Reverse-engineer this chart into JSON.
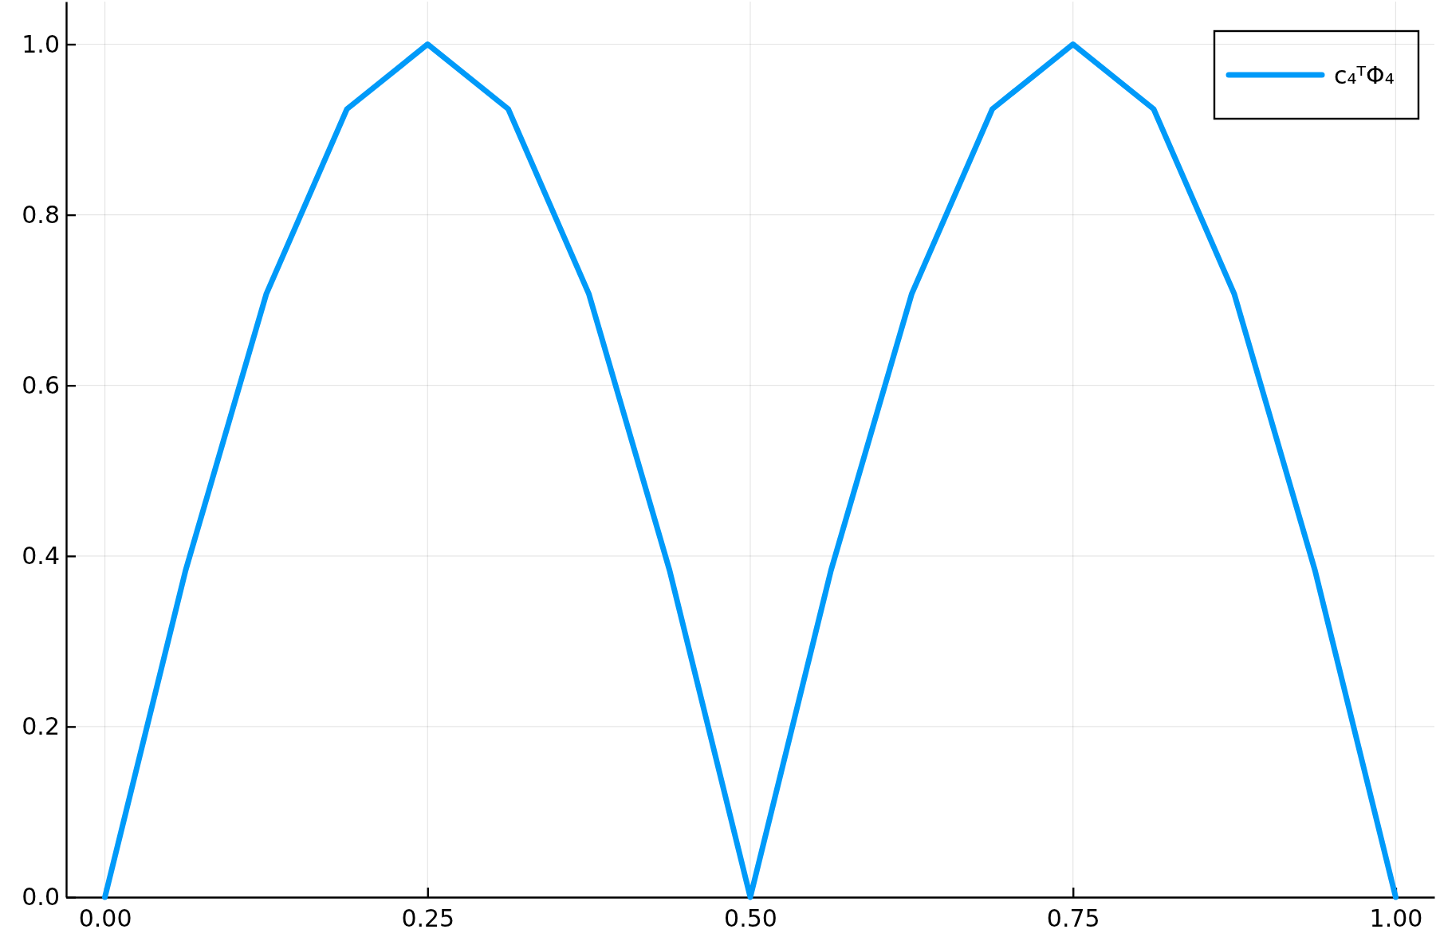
{
  "chart_data": {
    "type": "line",
    "x": [
      0,
      0.0625,
      0.125,
      0.1875,
      0.25,
      0.3125,
      0.375,
      0.4375,
      0.5,
      0.5625,
      0.625,
      0.6875,
      0.75,
      0.8125,
      0.875,
      0.9375,
      1.0
    ],
    "series": [
      {
        "name": "c₄ᵀΦ₄",
        "color": "#009af9",
        "values": [
          0,
          0.383,
          0.707,
          0.924,
          1.0,
          0.924,
          0.707,
          0.383,
          0,
          0.383,
          0.707,
          0.924,
          1.0,
          0.924,
          0.707,
          0.383,
          0
        ]
      }
    ],
    "xlim": [
      -0.03,
      1.03
    ],
    "ylim": [
      0,
      1.05
    ],
    "xticks": [
      {
        "value": 0,
        "label": "0.00"
      },
      0.25,
      {
        "value": 0.5,
        "label": "0.50"
      },
      0.75,
      {
        "value": 1,
        "label": "1.00"
      }
    ],
    "yticks": [
      {
        "value": 0,
        "label": "0.0"
      },
      0.2,
      0.4,
      0.6,
      0.8,
      {
        "value": 1,
        "label": "1.0"
      }
    ],
    "grid": true,
    "legend": "top right",
    "line_style": "solid",
    "marker": "none"
  }
}
